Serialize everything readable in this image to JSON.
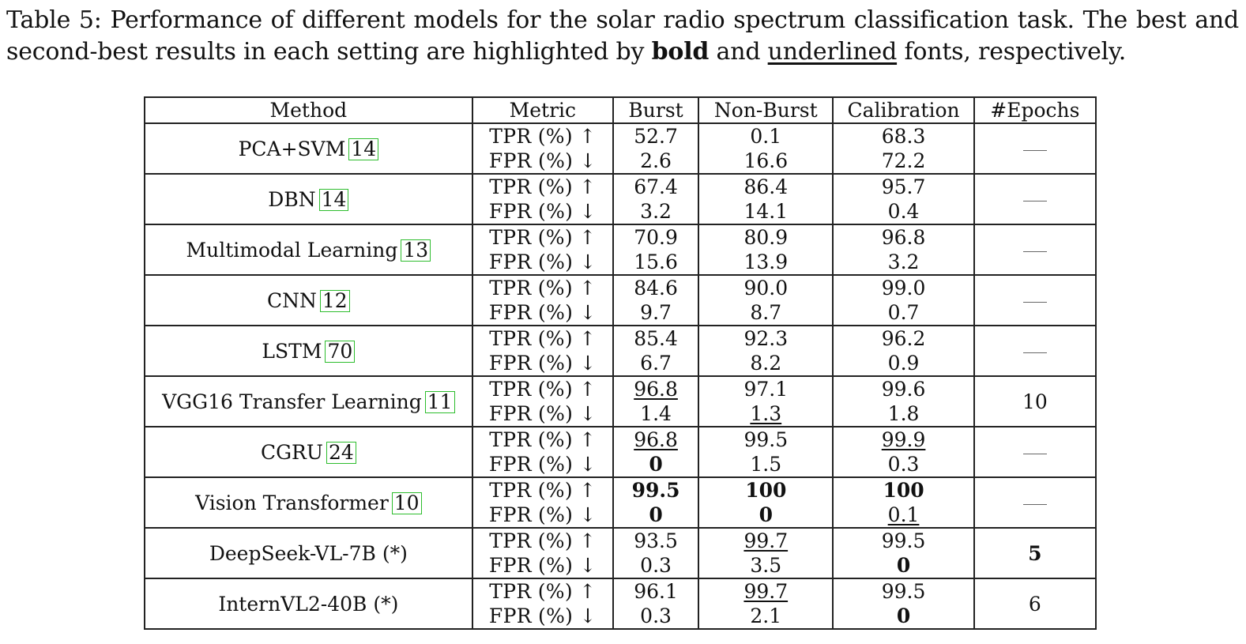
{
  "caption": {
    "label": "Table 5:",
    "text_a": "Performance of different models for the solar radio spectrum classification task. The best and second-best results in each setting are highlighted by",
    "bold_word": "bold",
    "and_word": "and",
    "underline_word": "underlined",
    "text_b": "fonts, respectively."
  },
  "table": {
    "headers": [
      "Method",
      "Metric",
      "Burst",
      "Non-Burst",
      "Calibration",
      "#Epochs"
    ],
    "metric_labels": {
      "tpr": "TPR (%) ↑",
      "fpr": "FPR (%) ↓"
    },
    "rows": [
      {
        "method": "PCA+SVM",
        "cite": "14",
        "epochs": "—",
        "tpr": [
          "52.7",
          "0.1",
          "68.3"
        ],
        "fpr": [
          "2.6",
          "16.6",
          "72.2"
        ]
      },
      {
        "method": "DBN",
        "cite": "14",
        "epochs": "—",
        "tpr": [
          "67.4",
          "86.4",
          "95.7"
        ],
        "fpr": [
          "3.2",
          "14.1",
          "0.4"
        ]
      },
      {
        "method": "Multimodal Learning",
        "cite": "13",
        "epochs": "—",
        "tpr": [
          "70.9",
          "80.9",
          "96.8"
        ],
        "fpr": [
          "15.6",
          "13.9",
          "3.2"
        ]
      },
      {
        "method": "CNN",
        "cite": "12",
        "epochs": "—",
        "tpr": [
          "84.6",
          "90.0",
          "99.0"
        ],
        "fpr": [
          "9.7",
          "8.7",
          "0.7"
        ]
      },
      {
        "method": "LSTM",
        "cite": "70",
        "epochs": "—",
        "tpr": [
          "85.4",
          "92.3",
          "96.2"
        ],
        "fpr": [
          "6.7",
          "8.2",
          "0.9"
        ]
      },
      {
        "method": "VGG16 Transfer Learning",
        "cite": "11",
        "epochs": "10",
        "tpr": [
          "96.8",
          "97.1",
          "99.6"
        ],
        "fpr": [
          "1.4",
          "1.3",
          "1.8"
        ]
      },
      {
        "method": "CGRU",
        "cite": "24",
        "epochs": "—",
        "tpr": [
          "96.8",
          "99.5",
          "99.9"
        ],
        "fpr": [
          "0",
          "1.5",
          "0.3"
        ]
      },
      {
        "method": "Vision Transformer",
        "cite": "10",
        "epochs": "—",
        "tpr": [
          "99.5",
          "100",
          "100"
        ],
        "fpr": [
          "0",
          "0",
          "0.1"
        ]
      },
      {
        "method": "DeepSeek-VL-7B (*)",
        "cite": "",
        "epochs": "5",
        "tpr": [
          "93.5",
          "99.7",
          "99.5"
        ],
        "fpr": [
          "0.3",
          "3.5",
          "0"
        ]
      },
      {
        "method": "InternVL2-40B (*)",
        "cite": "",
        "epochs": "6",
        "tpr": [
          "96.1",
          "99.7",
          "99.5"
        ],
        "fpr": [
          "0.3",
          "2.1",
          "0"
        ]
      }
    ]
  }
}
